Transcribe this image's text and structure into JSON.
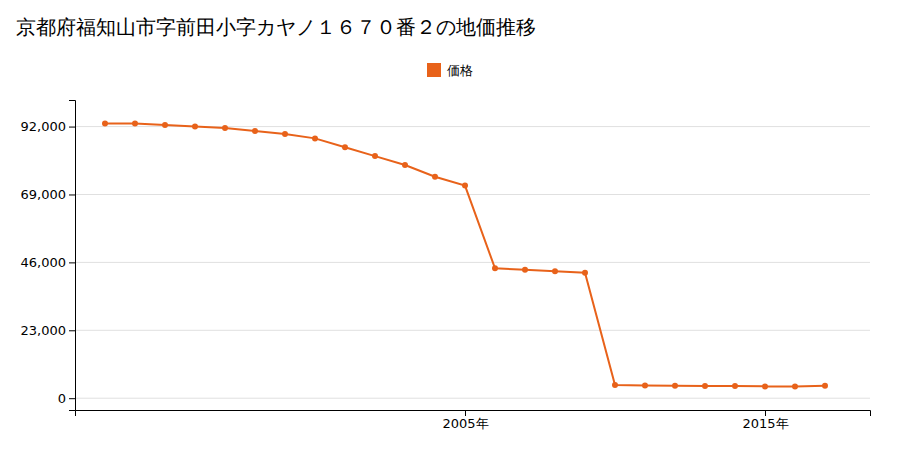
{
  "chart_data": {
    "type": "line",
    "title": "京都府福知山市字前田小字カヤノ１６７０番２の地価推移",
    "x": [
      1993,
      1994,
      1995,
      1996,
      1997,
      1998,
      1999,
      2000,
      2001,
      2002,
      2003,
      2004,
      2005,
      2006,
      2007,
      2008,
      2009,
      2010,
      2011,
      2012,
      2013,
      2014,
      2015,
      2016,
      2017
    ],
    "series": [
      {
        "name": "価格",
        "color": "#E8621A",
        "marker": "circle",
        "values": [
          93000,
          93000,
          92500,
          92000,
          91500,
          90500,
          89500,
          88000,
          85000,
          82000,
          79000,
          75000,
          72000,
          44000,
          43500,
          43000,
          42500,
          4500,
          4300,
          4200,
          4100,
          4100,
          4000,
          4000,
          4200
        ]
      }
    ],
    "xlim": [
      1992,
      2018.5
    ],
    "xticks": [
      {
        "value": 2005,
        "label": "2005年"
      },
      {
        "value": 2015,
        "label": "2015年"
      }
    ],
    "ylim": [
      -4000,
      101000
    ],
    "yticks": [
      0,
      {
        "value": 23000,
        "label": "23,000"
      },
      {
        "value": 46000,
        "label": "46,000"
      },
      {
        "value": 69000,
        "label": "69,000"
      },
      {
        "value": 92000,
        "label": "92,000"
      }
    ],
    "grid": true,
    "legend": "top"
  }
}
